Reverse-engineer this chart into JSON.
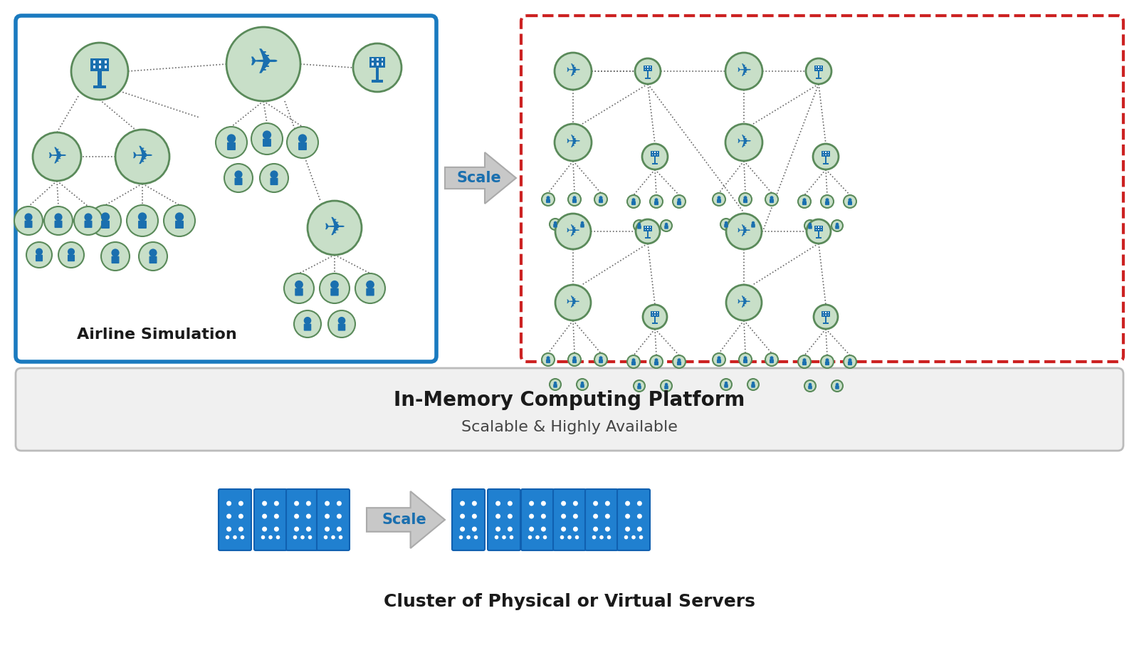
{
  "bg_color": "#ffffff",
  "circle_fill": "#c8dfc8",
  "circle_edge": "#5a8a5a",
  "icon_color": "#1a6faf",
  "line_color": "#666666",
  "blue_box_color": "#1a7abf",
  "red_box_color": "#cc2222",
  "arrow_gray": "#c8c8c8",
  "arrow_edge": "#aaaaaa",
  "scale_text_color": "#1a6faf",
  "server_color": "#2080d0",
  "text_dark": "#1a1a1a",
  "platform_box_fill": "#f0f0f0",
  "platform_box_edge": "#bbbbbb",
  "title_line1": "In-Memory Computing Platform",
  "title_line2": "Scalable & Highly Available",
  "cluster_label": "Cluster of Physical or Virtual Servers",
  "airline_label": "Airline Simulation",
  "scale_label": "Scale"
}
